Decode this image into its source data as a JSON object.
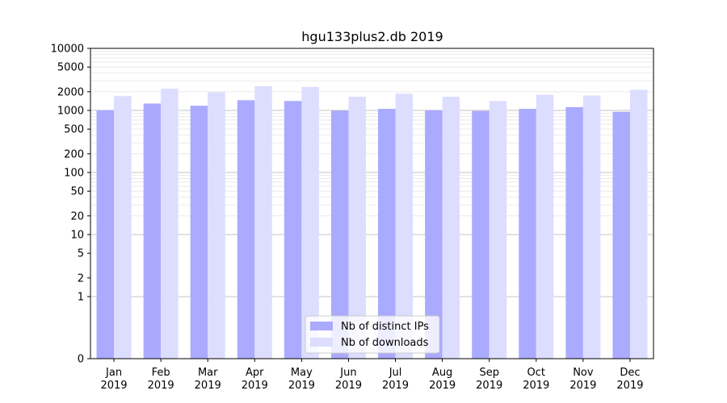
{
  "chart_data": {
    "type": "bar",
    "title": "hgu133plus2.db 2019",
    "xlabel": "",
    "ylabel": "",
    "yscale": "symlog",
    "ylim": [
      0,
      10000
    ],
    "yticks": [
      0,
      1,
      2,
      5,
      10,
      20,
      50,
      100,
      200,
      500,
      1000,
      2000,
      5000,
      10000
    ],
    "categories": [
      [
        "Jan",
        "2019"
      ],
      [
        "Feb",
        "2019"
      ],
      [
        "Mar",
        "2019"
      ],
      [
        "Apr",
        "2019"
      ],
      [
        "May",
        "2019"
      ],
      [
        "Jun",
        "2019"
      ],
      [
        "Jul",
        "2019"
      ],
      [
        "Aug",
        "2019"
      ],
      [
        "Sep",
        "2019"
      ],
      [
        "Oct",
        "2019"
      ],
      [
        "Nov",
        "2019"
      ],
      [
        "Dec",
        "2019"
      ]
    ],
    "series": [
      {
        "name": "Nb of distinct IPs",
        "color": "#aaaaff",
        "values": [
          1010,
          1290,
          1190,
          1460,
          1420,
          990,
          1060,
          1010,
          980,
          1060,
          1130,
          950
        ]
      },
      {
        "name": "Nb of downloads",
        "color": "#ddddff",
        "values": [
          1700,
          2240,
          1960,
          2460,
          2390,
          1660,
          1860,
          1660,
          1420,
          1790,
          1740,
          2150
        ]
      }
    ],
    "legend_position": "bottom-center",
    "grid": "y-major-and-minor"
  }
}
